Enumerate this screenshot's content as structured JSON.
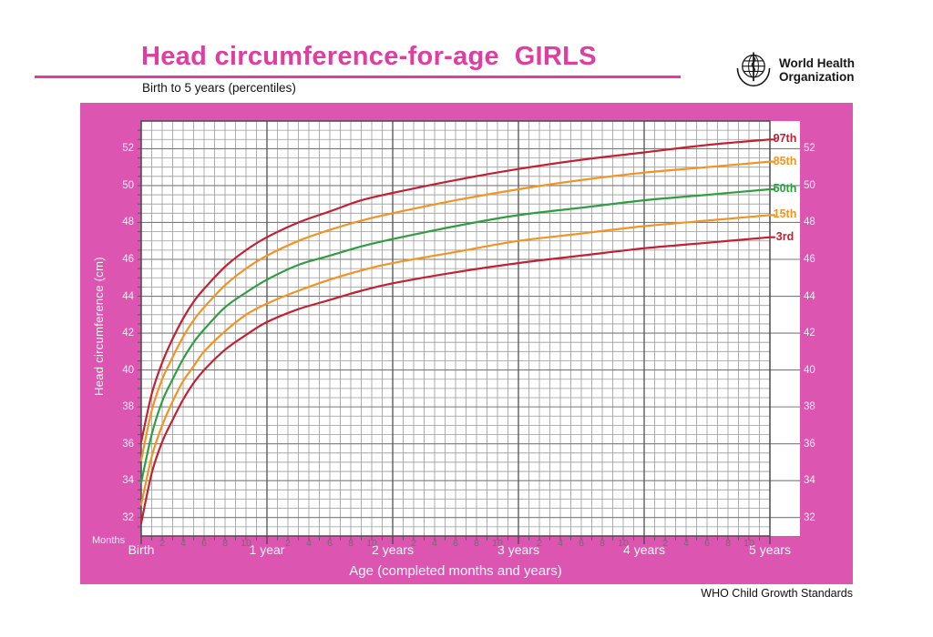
{
  "header": {
    "title": "Head circumference-for-age  GIRLS",
    "subtitle": "Birth to 5 years (percentiles)",
    "org_line1": "World Health",
    "org_line2": "Organization"
  },
  "footer": {
    "text": "WHO Child Growth Standards"
  },
  "colors": {
    "title_pink": "#df3da1",
    "panel_pink": "#dc55b0",
    "grid_minor": "#9a9a9a",
    "grid_major": "#7a7a7a",
    "grid_year": "#5c5c5c",
    "grid_border": "#4a4a4a",
    "percentile_red": "#c22033",
    "percentile_orange": "#f39324",
    "percentile_green": "#2f9e41",
    "month_number_gray": "#6e6e6e"
  },
  "chart_data": {
    "type": "line",
    "title": "Head circumference-for-age GIRLS",
    "subtitle": "Birth to 5 years (percentiles)",
    "xlabel": "Age (completed months and years)",
    "ylabel": "Head circumference (cm)",
    "x_axis_unit_caption": "Months",
    "grid": "on",
    "xlim_months": [
      0,
      60
    ],
    "ylim": [
      31,
      53.5
    ],
    "y_ticks": [
      32,
      34,
      36,
      38,
      40,
      42,
      44,
      46,
      48,
      50,
      52
    ],
    "minor_y_step_cm": 0.5,
    "minor_x_step_months": 1,
    "year_tick_labels": [
      "Birth",
      "1 year",
      "2 years",
      "3 years",
      "4 years",
      "5 years"
    ],
    "month_numbers_between_years": [
      2,
      4,
      6,
      8,
      10
    ],
    "legend_position": "right-end-labels",
    "x_months": [
      0,
      1,
      2,
      3,
      4,
      5,
      6,
      8,
      10,
      12,
      15,
      18,
      21,
      24,
      30,
      36,
      42,
      48,
      54,
      60
    ],
    "series": [
      {
        "name": "97th",
        "color": "#c22033",
        "values": [
          36.1,
          38.7,
          40.4,
          41.7,
          42.8,
          43.7,
          44.4,
          45.6,
          46.5,
          47.2,
          48.0,
          48.6,
          49.2,
          49.6,
          50.3,
          50.9,
          51.4,
          51.8,
          52.2,
          52.5
        ]
      },
      {
        "name": "85th",
        "color": "#f39324",
        "values": [
          35.1,
          37.8,
          39.5,
          40.7,
          41.8,
          42.7,
          43.4,
          44.6,
          45.5,
          46.2,
          47.0,
          47.6,
          48.1,
          48.5,
          49.2,
          49.8,
          50.3,
          50.7,
          51.0,
          51.3
        ]
      },
      {
        "name": "50th",
        "color": "#2f9e41",
        "values": [
          33.9,
          36.5,
          38.3,
          39.5,
          40.6,
          41.5,
          42.2,
          43.4,
          44.2,
          44.9,
          45.7,
          46.2,
          46.7,
          47.1,
          47.8,
          48.4,
          48.8,
          49.2,
          49.5,
          49.8
        ]
      },
      {
        "name": "15th",
        "color": "#f39324",
        "values": [
          32.7,
          35.3,
          37.0,
          38.3,
          39.4,
          40.2,
          41.0,
          42.1,
          43.0,
          43.6,
          44.3,
          44.9,
          45.4,
          45.8,
          46.4,
          47.0,
          47.4,
          47.8,
          48.1,
          48.4
        ]
      },
      {
        "name": "3rd",
        "color": "#c22033",
        "values": [
          31.7,
          34.4,
          36.1,
          37.3,
          38.4,
          39.3,
          40.0,
          41.1,
          41.9,
          42.6,
          43.3,
          43.8,
          44.3,
          44.7,
          45.3,
          45.8,
          46.2,
          46.6,
          46.9,
          47.2
        ]
      }
    ]
  }
}
